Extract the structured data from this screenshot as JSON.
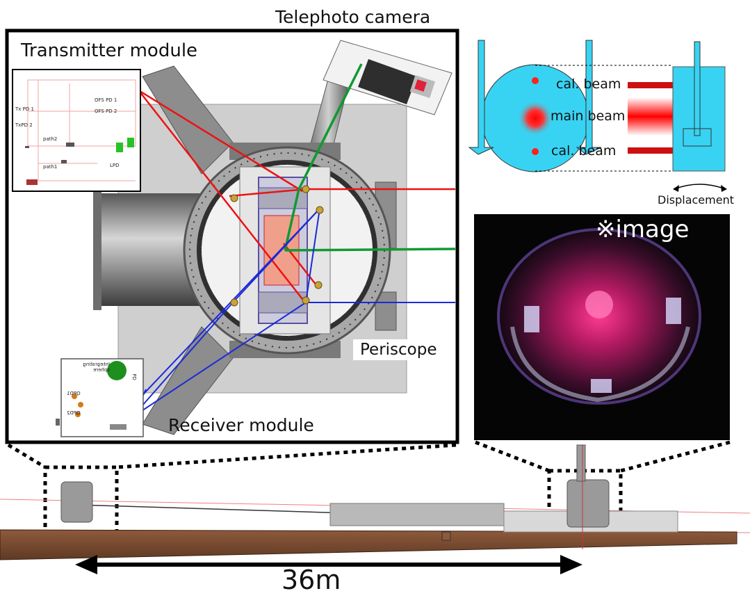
{
  "labels": {
    "telephoto_camera": "Telephoto camera",
    "transmitter_module": "Transmitter module",
    "receiver_module": "Receiver module",
    "periscope": "Periscope",
    "image_note": "※image",
    "distance": "36m",
    "cal_beam_top": "cal. beam",
    "main_beam": "main beam",
    "cal_beam_bottom": "cal. beam",
    "displacement": "Displacement"
  },
  "transmitter_schematic": {
    "txpd1": "Tx PD 1",
    "txpd2": "TxPD 2",
    "ofspd1": "OFS PD 1",
    "ofspd2": "OFS PD 2",
    "path2": "path2",
    "path1": "path1",
    "lpd": "LPD"
  },
  "receiver_schematic": {
    "qpd1": "QPD1",
    "qpd2": "QPD2",
    "integrating_sphere": "Integrating sphere",
    "pd": "PD"
  },
  "colors": {
    "laser_red": "#ee1111",
    "camera_beam_green": "#119933",
    "return_beam_blue": "#1a2ad8",
    "target_cyan": "#38d3f2",
    "beam_table_brown": "#7a4a30"
  }
}
